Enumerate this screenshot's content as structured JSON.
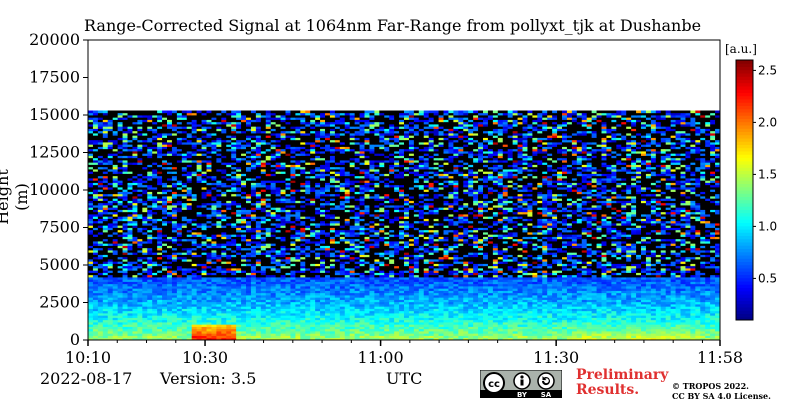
{
  "chart_data": {
    "type": "heatmap",
    "title": "Range-Corrected Signal at 1064nm Far-Range from pollyxt_tjk at Dushanbe",
    "ylabel": "Height (m)",
    "xlabel": "UTC",
    "x_ticks": [
      "10:10",
      "10:30",
      "11:00",
      "11:30",
      "11:58"
    ],
    "x_range": [
      "10:10",
      "11:58"
    ],
    "y_ticks": [
      0,
      2500,
      5000,
      7500,
      10000,
      12500,
      15000,
      17500,
      20000
    ],
    "ylim": [
      0,
      20000
    ],
    "data_ceiling_m": 15300,
    "colorbar": {
      "label": "[a.u.]",
      "ticks": [
        0.5,
        1.0,
        1.5,
        2.0,
        2.5
      ],
      "range": [
        0.1,
        2.6
      ],
      "colormap": "jet"
    },
    "signal_profile": [
      {
        "height_m": 200,
        "value": 1.4
      },
      {
        "height_m": 800,
        "value": 1.2
      },
      {
        "height_m": 1500,
        "value": 1.05
      },
      {
        "height_m": 2500,
        "value": 0.85
      },
      {
        "height_m": 3500,
        "value": 0.7
      },
      {
        "height_m": 4300,
        "value": 0.6
      },
      {
        "height_m": 5500,
        "value": 0.35
      },
      {
        "height_m": 8000,
        "value": 0.3
      },
      {
        "height_m": 12000,
        "value": 0.3
      },
      {
        "height_m": 15000,
        "value": 0.3
      }
    ],
    "enhanced_regions": [
      {
        "time_start": "10:28",
        "time_end": "10:35",
        "height_max_m": 1100,
        "value": 2.3
      },
      {
        "time_start": "11:33",
        "time_end": "11:55",
        "height_max_m": 1200,
        "value": 1.6
      }
    ]
  },
  "footer": {
    "date": "2022-08-17",
    "version": "Version: 3.5",
    "preliminary_line1": "Preliminary",
    "preliminary_line2": "Results.",
    "copyright_line1": "© TROPOS 2022.",
    "copyright_line2": "CC BY SA 4.0 License."
  },
  "license_badge": {
    "left": "cc",
    "right_top": "BY",
    "right_bottom": "SA"
  }
}
